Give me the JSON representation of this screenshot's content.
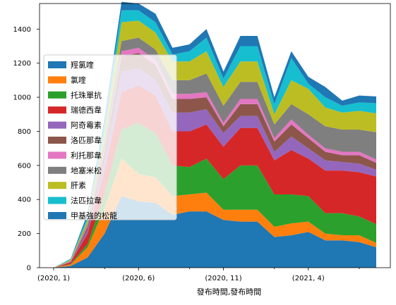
{
  "chart_data": {
    "type": "area",
    "stacked": true,
    "xlabel": "發布時間,發布時間",
    "ylabel": "",
    "ylim": [
      0,
      1550
    ],
    "yticks": [
      0,
      200,
      400,
      600,
      800,
      1000,
      1200,
      1400
    ],
    "x_tick_labels": [
      "(2020, 1)",
      "(2020, 6)",
      "(2020, 11)",
      "(2021, 4)"
    ],
    "x": [
      "2020-01",
      "2020-02",
      "2020-03",
      "2020-04",
      "2020-05",
      "2020-06",
      "2020-07",
      "2020-08",
      "2020-09",
      "2020-10",
      "2020-11",
      "2020-12",
      "2021-01",
      "2021-02",
      "2021-03",
      "2021-04",
      "2021-05",
      "2021-06",
      "2021-07",
      "2021-08"
    ],
    "legend_position": "upper-left",
    "grid": false,
    "series": [
      {
        "name": "羥氯喹",
        "color": "#1f77b4",
        "values": [
          0,
          10,
          60,
          200,
          420,
          390,
          380,
          310,
          330,
          330,
          280,
          270,
          270,
          180,
          190,
          210,
          160,
          160,
          150,
          120
        ]
      },
      {
        "name": "氯喹",
        "color": "#ff7f0e",
        "values": [
          0,
          8,
          60,
          150,
          220,
          160,
          150,
          110,
          100,
          110,
          60,
          70,
          70,
          60,
          70,
          60,
          40,
          30,
          40,
          25
        ]
      },
      {
        "name": "托珠單抗",
        "color": "#2ca02c",
        "values": [
          0,
          3,
          20,
          80,
          170,
          300,
          260,
          180,
          160,
          200,
          180,
          260,
          260,
          190,
          170,
          150,
          120,
          130,
          110,
          110
        ]
      },
      {
        "name": "瑞德西韋",
        "color": "#d62728",
        "values": [
          0,
          10,
          60,
          140,
          220,
          220,
          220,
          200,
          210,
          200,
          190,
          220,
          220,
          200,
          260,
          220,
          250,
          250,
          260,
          280
        ]
      },
      {
        "name": "阿奇霉素",
        "color": "#9467bd",
        "values": [
          0,
          3,
          20,
          60,
          120,
          100,
          90,
          110,
          110,
          90,
          80,
          70,
          70,
          50,
          80,
          60,
          60,
          50,
          50,
          40
        ]
      },
      {
        "name": "洛匹那韋",
        "color": "#8c564b",
        "values": [
          0,
          2,
          20,
          50,
          90,
          90,
          90,
          80,
          80,
          70,
          40,
          70,
          70,
          60,
          70,
          60,
          50,
          40,
          50,
          40
        ]
      },
      {
        "name": "利托那韋",
        "color": "#e377c2",
        "values": [
          0,
          2,
          10,
          20,
          30,
          30,
          30,
          30,
          30,
          30,
          20,
          30,
          30,
          20,
          30,
          20,
          20,
          20,
          20,
          20
        ]
      },
      {
        "name": "地塞米松",
        "color": "#7f7f7f",
        "values": [
          0,
          2,
          10,
          40,
          60,
          60,
          60,
          80,
          80,
          110,
          100,
          100,
          100,
          80,
          90,
          120,
          130,
          130,
          130,
          160
        ]
      },
      {
        "name": "肝素",
        "color": "#bcbd22",
        "values": [
          0,
          5,
          20,
          60,
          110,
          100,
          100,
          110,
          110,
          130,
          110,
          120,
          120,
          60,
          140,
          150,
          110,
          100,
          110,
          110
        ]
      },
      {
        "name": "法匹拉韋",
        "color": "#17becf",
        "values": [
          0,
          5,
          20,
          50,
          70,
          60,
          60,
          40,
          60,
          80,
          50,
          90,
          90,
          60,
          130,
          30,
          60,
          40,
          50,
          60
        ]
      },
      {
        "name": "甲基強的松龍",
        "color": "#1f77b4",
        "values": [
          0,
          2,
          20,
          30,
          50,
          40,
          50,
          40,
          40,
          50,
          40,
          60,
          60,
          40,
          40,
          40,
          60,
          30,
          40,
          40
        ]
      }
    ]
  }
}
